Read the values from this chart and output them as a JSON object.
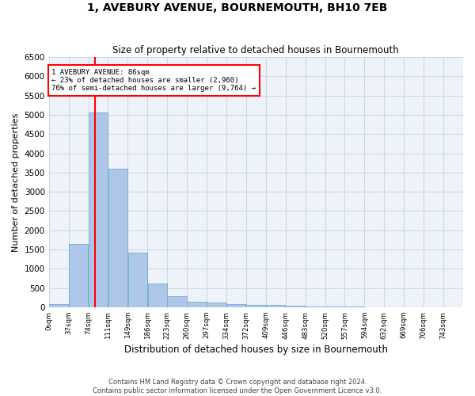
{
  "title": "1, AVEBURY AVENUE, BOURNEMOUTH, BH10 7EB",
  "subtitle": "Size of property relative to detached houses in Bournemouth",
  "xlabel": "Distribution of detached houses by size in Bournemouth",
  "ylabel": "Number of detached properties",
  "footnote1": "Contains HM Land Registry data © Crown copyright and database right 2024.",
  "footnote2": "Contains public sector information licensed under the Open Government Licence v3.0.",
  "bin_labels": [
    "0sqm",
    "37sqm",
    "74sqm",
    "111sqm",
    "149sqm",
    "186sqm",
    "223sqm",
    "260sqm",
    "297sqm",
    "334sqm",
    "372sqm",
    "409sqm",
    "446sqm",
    "483sqm",
    "520sqm",
    "557sqm",
    "594sqm",
    "632sqm",
    "669sqm",
    "706sqm",
    "743sqm"
  ],
  "bar_values": [
    75,
    1650,
    5060,
    3600,
    1420,
    620,
    290,
    145,
    110,
    75,
    65,
    50,
    45,
    20,
    10,
    8,
    5,
    5,
    3,
    2,
    0
  ],
  "bar_color": "#aec6e8",
  "bar_edge_color": "#6aaed6",
  "grid_color": "#d0d8e8",
  "background_color": "#eef2f9",
  "red_line_x": 86,
  "bin_width": 37,
  "annotation_text": "1 AVEBURY AVENUE: 86sqm\n← 23% of detached houses are smaller (2,960)\n76% of semi-detached houses are larger (9,764) →",
  "annotation_box_color": "white",
  "annotation_box_edge_color": "red",
  "ylim": [
    0,
    6500
  ],
  "yticks": [
    0,
    500,
    1000,
    1500,
    2000,
    2500,
    3000,
    3500,
    4000,
    4500,
    5000,
    5500,
    6000,
    6500
  ]
}
